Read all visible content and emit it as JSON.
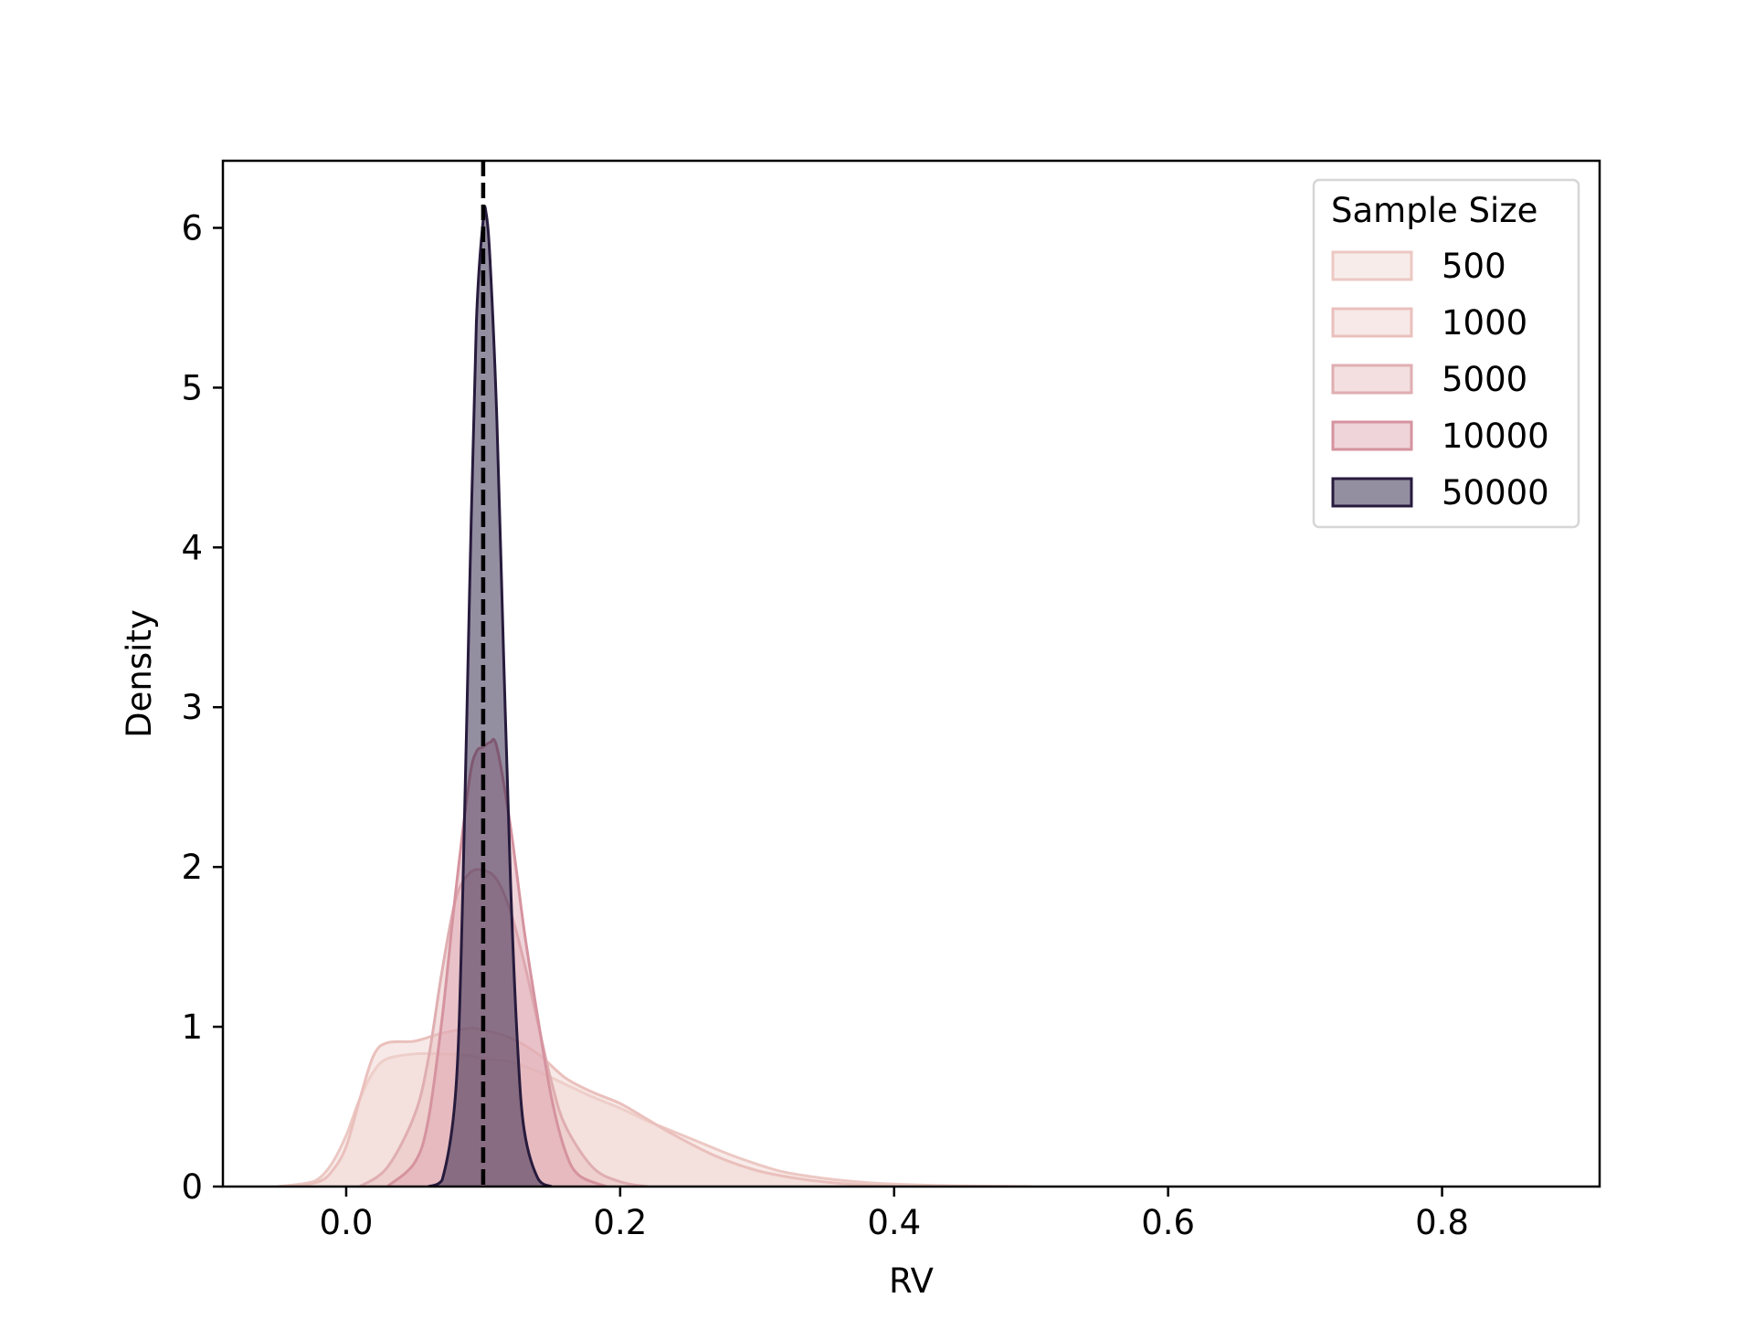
{
  "chart_data": {
    "type": "area",
    "title": "",
    "xlabel": "RV",
    "ylabel": "Density",
    "xlim": [
      -0.09,
      0.915
    ],
    "ylim": [
      0,
      6.42
    ],
    "xticks": [
      0.0,
      0.2,
      0.4,
      0.6,
      0.8
    ],
    "xtick_labels": [
      "0.0",
      "0.2",
      "0.4",
      "0.6",
      "0.8"
    ],
    "yticks": [
      0,
      1,
      2,
      3,
      4,
      5,
      6
    ],
    "ytick_labels": [
      "0",
      "1",
      "2",
      "3",
      "4",
      "5",
      "6"
    ],
    "grid": false,
    "legend": {
      "title": "Sample Size",
      "placement": "top-right"
    },
    "reference_line": {
      "x": 0.1,
      "style": "dashed",
      "color": "#000000"
    },
    "series": [
      {
        "name": "500",
        "fill": "#f2d9d6",
        "stroke": "#ecc8c3",
        "fill_opacity": 0.5,
        "x": [
          -0.05,
          -0.03,
          -0.02,
          -0.01,
          0.0,
          0.01,
          0.02,
          0.03,
          0.05,
          0.07,
          0.09,
          0.1,
          0.12,
          0.14,
          0.16,
          0.18,
          0.2,
          0.22,
          0.24,
          0.26,
          0.28,
          0.3,
          0.32,
          0.35,
          0.38,
          0.41,
          0.45,
          0.5
        ],
        "y": [
          0.0,
          0.02,
          0.05,
          0.15,
          0.32,
          0.55,
          0.72,
          0.8,
          0.83,
          0.83,
          0.82,
          0.8,
          0.78,
          0.72,
          0.64,
          0.56,
          0.49,
          0.41,
          0.34,
          0.27,
          0.2,
          0.14,
          0.09,
          0.05,
          0.025,
          0.012,
          0.004,
          0.0
        ]
      },
      {
        "name": "1000",
        "fill": "#f0d3d0",
        "stroke": "#eac0bc",
        "fill_opacity": 0.5,
        "x": [
          -0.04,
          -0.02,
          -0.01,
          0.0,
          0.01,
          0.02,
          0.03,
          0.05,
          0.07,
          0.09,
          0.1,
          0.12,
          0.14,
          0.16,
          0.18,
          0.2,
          0.22,
          0.24,
          0.27,
          0.3,
          0.33,
          0.36,
          0.4
        ],
        "y": [
          0.0,
          0.03,
          0.1,
          0.25,
          0.55,
          0.82,
          0.9,
          0.91,
          0.96,
          0.99,
          0.98,
          0.93,
          0.83,
          0.68,
          0.59,
          0.52,
          0.42,
          0.32,
          0.19,
          0.1,
          0.05,
          0.02,
          0.0
        ]
      },
      {
        "name": "5000",
        "fill": "#e8bfc0",
        "stroke": "#dfaeb1",
        "fill_opacity": 0.5,
        "x": [
          0.01,
          0.03,
          0.05,
          0.06,
          0.07,
          0.08,
          0.09,
          0.1,
          0.11,
          0.12,
          0.13,
          0.14,
          0.15,
          0.16,
          0.18,
          0.2,
          0.22
        ],
        "y": [
          0.0,
          0.12,
          0.45,
          0.8,
          1.35,
          1.8,
          1.96,
          1.98,
          1.92,
          1.72,
          1.4,
          1.02,
          0.65,
          0.38,
          0.12,
          0.03,
          0.0
        ]
      },
      {
        "name": "10000",
        "fill": "#dba0ae",
        "stroke": "#d5939f",
        "fill_opacity": 0.45,
        "x": [
          0.03,
          0.05,
          0.06,
          0.07,
          0.08,
          0.09,
          0.095,
          0.1,
          0.105,
          0.11,
          0.12,
          0.13,
          0.14,
          0.15,
          0.16,
          0.17,
          0.19
        ],
        "y": [
          0.0,
          0.15,
          0.42,
          1.05,
          1.85,
          2.55,
          2.72,
          2.75,
          2.78,
          2.75,
          2.25,
          1.6,
          1.05,
          0.55,
          0.22,
          0.07,
          0.0
        ]
      },
      {
        "name": "50000",
        "fill": "#2a1e43",
        "stroke": "#271b3d",
        "fill_opacity": 0.5,
        "x": [
          0.06,
          0.07,
          0.08,
          0.085,
          0.09,
          0.095,
          0.1,
          0.102,
          0.105,
          0.11,
          0.115,
          0.12,
          0.125,
          0.13,
          0.14,
          0.15
        ],
        "y": [
          0.0,
          0.04,
          0.6,
          1.8,
          3.7,
          5.4,
          6.05,
          6.1,
          5.8,
          4.8,
          3.3,
          1.9,
          0.9,
          0.35,
          0.05,
          0.0
        ]
      }
    ]
  }
}
